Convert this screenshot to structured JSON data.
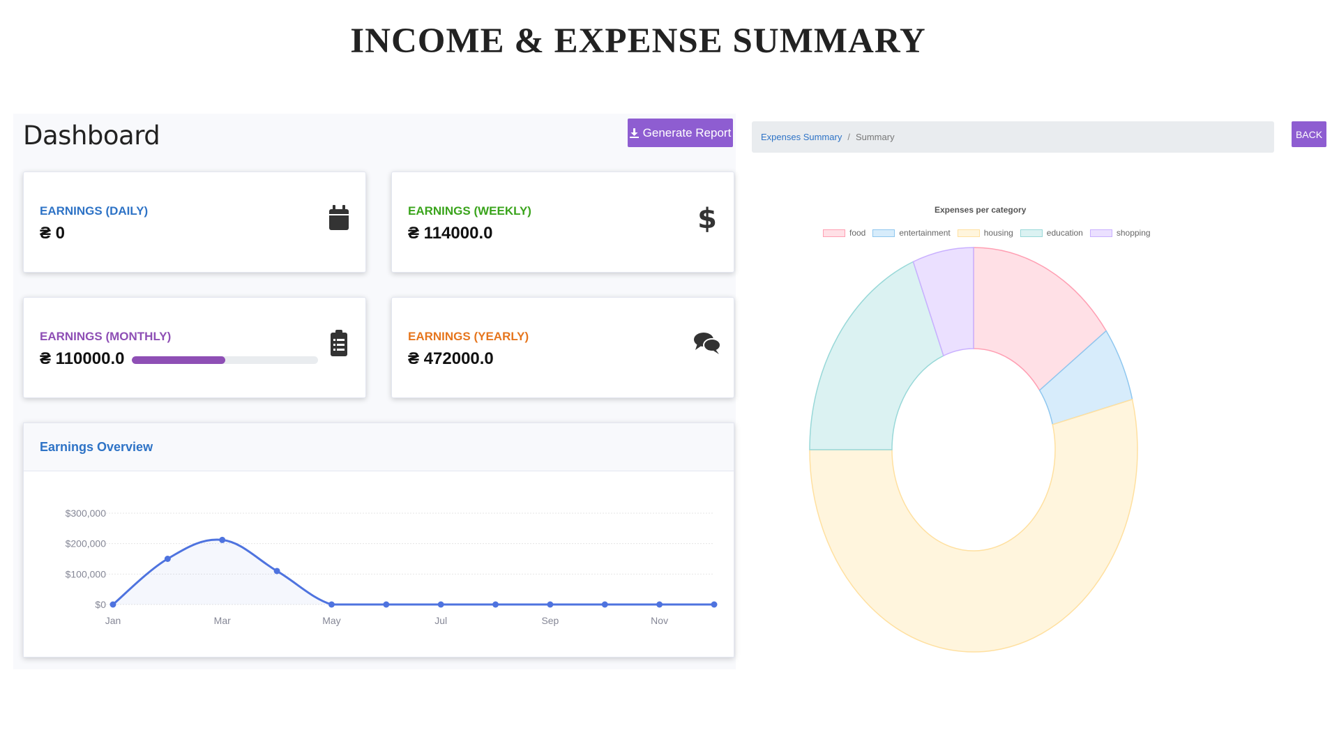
{
  "page_title": "INCOME & EXPENSE SUMMARY",
  "dashboard": {
    "title": "Dashboard",
    "report_button": "Generate Report",
    "cards": [
      {
        "label": "EARNINGS (DAILY)",
        "value": "₴ 0",
        "icon": "calendar-icon",
        "color": "#2e73c6"
      },
      {
        "label": "EARNINGS (WEEKLY)",
        "value": "₴ 114000.0",
        "icon": "dollar-icon",
        "color": "#3aa41c"
      },
      {
        "label": "EARNINGS (MONTHLY)",
        "value": "₴ 110000.0",
        "icon": "clipboard-list-icon",
        "color": "#8e4fb5",
        "progress": 0.5
      },
      {
        "label": "EARNINGS (YEARLY)",
        "value": "₴ 472000.0",
        "icon": "comments-icon",
        "color": "#e6761e"
      }
    ],
    "overview_title": "Earnings Overview"
  },
  "breadcrumb": {
    "link": "Expenses Summary",
    "separator": "/",
    "current": "Summary"
  },
  "back_button": "BACK",
  "chart_data": [
    {
      "type": "area",
      "title": "Earnings Overview",
      "x": [
        "Jan",
        "Feb",
        "Mar",
        "Apr",
        "May",
        "Jun",
        "Jul",
        "Aug",
        "Sep",
        "Oct",
        "Nov",
        "Dec"
      ],
      "x_tick_labels": [
        "Jan",
        "Mar",
        "May",
        "Jul",
        "Sep",
        "Nov"
      ],
      "values": [
        0,
        150000,
        212000,
        110000,
        0,
        0,
        0,
        0,
        0,
        0,
        0,
        0
      ],
      "y_ticks": [
        "$0",
        "$100,000",
        "$200,000",
        "$300,000"
      ],
      "ylim": [
        0,
        300000
      ],
      "grid": true,
      "color": "#4e73df"
    },
    {
      "type": "pie",
      "variant": "doughnut",
      "title": "Expenses per category",
      "legend_position": "top",
      "categories": [
        "food",
        "entertainment",
        "housing",
        "education",
        "shopping"
      ],
      "values": [
        15,
        6,
        54,
        19,
        6
      ],
      "fill_colors": [
        "#ffe0e6",
        "#d7ecfb",
        "#fff5dd",
        "#dbf2f2",
        "#ebe0ff"
      ],
      "border_colors": [
        "#ff9fb3",
        "#8fc7ef",
        "#ffe0a0",
        "#98d8d8",
        "#c9b0ff"
      ]
    }
  ]
}
